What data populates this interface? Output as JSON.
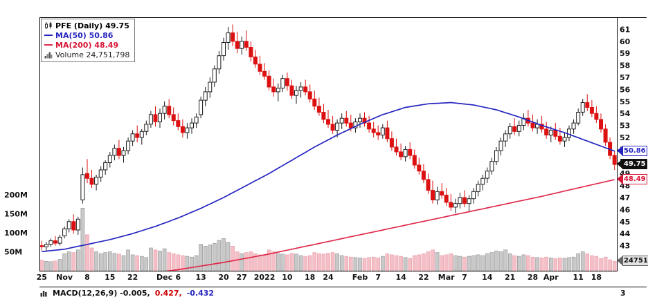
{
  "chart_data": {
    "type": "candlestick",
    "symbol": "PFE",
    "period": "Daily",
    "legend": {
      "title": "PFE (Daily) 49.75",
      "ma50": "MA(50) 50.86",
      "ma200": "MA(200) 48.49",
      "volume": "Volume 24,751,798"
    },
    "colors": {
      "up_fill": "#ffffff",
      "up_border": "#1a1a1a",
      "down": "#dd1111",
      "ma50": "#2424c0",
      "ma200": "#e0294b",
      "volume_up": "#c9c9c9",
      "volume_up_border": "#8f8f8f",
      "volume_down": "#f5bfc7",
      "volume_down_border": "#e59aa6"
    },
    "price_axis": {
      "ticks": [
        61,
        60,
        59,
        58,
        57,
        56,
        55,
        54,
        53,
        52,
        51,
        50,
        49,
        48,
        47,
        46,
        45,
        44,
        43
      ]
    },
    "volume_axis": {
      "labels": [
        "200M",
        "150M",
        "100M",
        "50M"
      ],
      "values": [
        200,
        150,
        100,
        50
      ]
    },
    "x_ticks": [
      [
        0,
        "25"
      ],
      [
        5,
        "Nov"
      ],
      [
        10,
        "8"
      ],
      [
        15,
        "15"
      ],
      [
        20,
        "22"
      ],
      [
        27,
        "Dec"
      ],
      [
        30,
        "6"
      ],
      [
        35,
        "13"
      ],
      [
        40,
        "20"
      ],
      [
        44,
        "27"
      ],
      [
        49,
        "2022"
      ],
      [
        54,
        "10"
      ],
      [
        59,
        "18"
      ],
      [
        63,
        "24"
      ],
      [
        70,
        "Feb"
      ],
      [
        74,
        "7"
      ],
      [
        79,
        "14"
      ],
      [
        84,
        "22"
      ],
      [
        89,
        "Mar"
      ],
      [
        93,
        "7"
      ],
      [
        98,
        "14"
      ],
      [
        103,
        "21"
      ],
      [
        108,
        "28"
      ],
      [
        112,
        "Apr"
      ],
      [
        118,
        "11"
      ],
      [
        122,
        "18"
      ]
    ],
    "candles": [
      [
        43.0,
        43.4,
        42.6,
        42.9,
        28
      ],
      [
        42.9,
        43.3,
        42.5,
        43.1,
        25
      ],
      [
        43.1,
        43.6,
        42.9,
        43.4,
        24
      ],
      [
        43.4,
        43.8,
        43.0,
        43.2,
        26
      ],
      [
        43.2,
        43.9,
        43.0,
        43.7,
        30
      ],
      [
        43.8,
        44.6,
        43.6,
        44.4,
        45
      ],
      [
        44.4,
        45.2,
        44.1,
        45.0,
        50
      ],
      [
        45.0,
        45.6,
        44.0,
        44.3,
        48
      ],
      [
        44.3,
        45.4,
        43.9,
        45.2,
        55
      ],
      [
        46.8,
        49.5,
        46.5,
        48.9,
        165
      ],
      [
        49.0,
        50.2,
        48.2,
        48.6,
        95
      ],
      [
        48.6,
        49.3,
        47.8,
        48.1,
        60
      ],
      [
        48.1,
        48.9,
        47.6,
        48.7,
        50
      ],
      [
        48.7,
        49.6,
        48.3,
        49.3,
        45
      ],
      [
        49.3,
        50.1,
        48.9,
        49.9,
        48
      ],
      [
        49.9,
        50.8,
        49.5,
        50.5,
        50
      ],
      [
        50.5,
        51.4,
        50.1,
        51.1,
        46
      ],
      [
        51.1,
        51.8,
        50.2,
        50.5,
        44
      ],
      [
        50.5,
        51.2,
        49.9,
        50.9,
        40
      ],
      [
        50.9,
        52.0,
        50.6,
        51.7,
        55
      ],
      [
        51.7,
        52.6,
        51.3,
        52.3,
        42
      ],
      [
        52.3,
        53.0,
        51.6,
        52.0,
        40
      ],
      [
        52.0,
        52.7,
        51.4,
        52.5,
        38
      ],
      [
        52.5,
        53.4,
        52.2,
        53.1,
        35
      ],
      [
        53.1,
        54.2,
        52.8,
        53.9,
        60
      ],
      [
        53.9,
        54.6,
        52.9,
        53.3,
        55
      ],
      [
        53.3,
        54.4,
        52.8,
        54.0,
        52
      ],
      [
        54.0,
        55.0,
        53.5,
        54.6,
        58
      ],
      [
        54.6,
        55.2,
        53.6,
        53.9,
        48
      ],
      [
        53.9,
        54.5,
        53.0,
        53.4,
        45
      ],
      [
        53.4,
        54.0,
        52.6,
        52.9,
        42
      ],
      [
        52.9,
        53.5,
        52.0,
        52.4,
        40
      ],
      [
        52.4,
        53.2,
        51.9,
        52.8,
        38
      ],
      [
        52.8,
        53.6,
        52.3,
        53.2,
        36
      ],
      [
        53.2,
        54.0,
        52.8,
        53.7,
        40
      ],
      [
        53.9,
        55.4,
        53.6,
        55.1,
        70
      ],
      [
        55.1,
        56.2,
        54.6,
        55.8,
        65
      ],
      [
        55.8,
        57.0,
        55.3,
        56.6,
        68
      ],
      [
        56.6,
        58.0,
        56.2,
        57.7,
        72
      ],
      [
        57.7,
        59.2,
        57.3,
        58.8,
        80
      ],
      [
        58.8,
        60.3,
        58.4,
        59.9,
        85
      ],
      [
        59.9,
        61.2,
        59.3,
        60.7,
        75
      ],
      [
        60.7,
        61.4,
        59.6,
        60.0,
        65
      ],
      [
        60.0,
        60.8,
        59.0,
        59.4,
        50
      ],
      [
        59.4,
        60.4,
        58.9,
        60.0,
        45
      ],
      [
        60.0,
        60.9,
        59.2,
        59.5,
        48
      ],
      [
        59.5,
        60.0,
        58.3,
        58.7,
        50
      ],
      [
        58.7,
        59.3,
        57.8,
        58.1,
        45
      ],
      [
        58.1,
        58.8,
        57.2,
        57.5,
        42
      ],
      [
        57.5,
        58.2,
        56.8,
        57.1,
        40
      ],
      [
        57.1,
        57.6,
        55.9,
        56.2,
        55
      ],
      [
        56.2,
        56.9,
        55.4,
        55.8,
        50
      ],
      [
        55.8,
        56.5,
        55.0,
        56.1,
        45
      ],
      [
        56.1,
        57.2,
        55.8,
        56.9,
        44
      ],
      [
        56.9,
        57.4,
        55.9,
        56.3,
        42
      ],
      [
        56.3,
        56.8,
        55.2,
        55.5,
        46
      ],
      [
        55.5,
        56.3,
        54.8,
        55.9,
        44
      ],
      [
        55.9,
        56.6,
        55.3,
        56.2,
        40
      ],
      [
        56.2,
        56.8,
        55.5,
        55.8,
        38
      ],
      [
        55.8,
        56.4,
        54.9,
        55.2,
        40
      ],
      [
        55.2,
        55.9,
        54.3,
        54.6,
        48
      ],
      [
        54.6,
        55.3,
        53.8,
        54.1,
        45
      ],
      [
        54.1,
        54.8,
        53.2,
        53.5,
        44
      ],
      [
        53.5,
        54.3,
        52.8,
        53.1,
        46
      ],
      [
        53.1,
        53.8,
        52.3,
        52.6,
        48
      ],
      [
        52.6,
        53.5,
        52.0,
        53.2,
        45
      ],
      [
        53.2,
        54.0,
        52.7,
        53.6,
        40
      ],
      [
        53.6,
        54.2,
        52.9,
        53.2,
        38
      ],
      [
        53.2,
        53.9,
        52.5,
        52.8,
        36
      ],
      [
        52.8,
        53.6,
        52.4,
        53.3,
        35
      ],
      [
        53.3,
        54.0,
        52.8,
        53.6,
        34
      ],
      [
        53.6,
        54.1,
        52.9,
        53.2,
        33
      ],
      [
        53.2,
        53.8,
        52.4,
        52.7,
        35
      ],
      [
        52.7,
        53.3,
        52.0,
        52.4,
        36
      ],
      [
        52.4,
        53.0,
        51.8,
        52.2,
        34
      ],
      [
        52.2,
        53.1,
        51.9,
        52.8,
        38
      ],
      [
        52.8,
        53.4,
        51.6,
        51.9,
        45
      ],
      [
        51.9,
        52.5,
        50.9,
        51.2,
        42
      ],
      [
        51.2,
        51.9,
        50.5,
        50.8,
        40
      ],
      [
        50.8,
        51.5,
        50.1,
        50.4,
        38
      ],
      [
        50.4,
        51.3,
        50.0,
        51.0,
        35
      ],
      [
        51.0,
        51.6,
        50.2,
        50.5,
        33
      ],
      [
        50.5,
        51.0,
        49.4,
        49.7,
        40
      ],
      [
        49.7,
        50.3,
        48.9,
        49.2,
        42
      ],
      [
        49.2,
        49.8,
        48.2,
        48.5,
        45
      ],
      [
        48.5,
        49.0,
        47.3,
        47.6,
        50
      ],
      [
        47.6,
        48.4,
        46.5,
        46.8,
        55
      ],
      [
        46.8,
        47.9,
        46.4,
        47.5,
        48
      ],
      [
        47.5,
        48.2,
        46.9,
        47.2,
        40
      ],
      [
        47.2,
        47.8,
        46.3,
        46.6,
        42
      ],
      [
        46.6,
        47.3,
        45.9,
        46.2,
        45
      ],
      [
        46.2,
        46.9,
        45.7,
        46.5,
        40
      ],
      [
        46.5,
        47.4,
        46.1,
        47.0,
        38
      ],
      [
        47.0,
        47.6,
        46.2,
        46.5,
        36
      ],
      [
        46.5,
        47.2,
        45.8,
        46.9,
        38
      ],
      [
        46.9,
        47.8,
        46.5,
        47.5,
        40
      ],
      [
        47.5,
        48.4,
        47.1,
        48.1,
        42
      ],
      [
        48.1,
        48.9,
        47.6,
        48.6,
        40
      ],
      [
        48.6,
        49.5,
        48.2,
        49.2,
        45
      ],
      [
        49.2,
        50.3,
        48.9,
        50.0,
        48
      ],
      [
        50.0,
        51.2,
        49.7,
        50.9,
        52
      ],
      [
        50.9,
        52.0,
        50.5,
        51.7,
        50
      ],
      [
        51.7,
        52.6,
        51.2,
        52.3,
        55
      ],
      [
        52.3,
        53.2,
        51.9,
        52.9,
        45
      ],
      [
        52.9,
        53.6,
        52.2,
        52.5,
        40
      ],
      [
        52.5,
        53.4,
        52.1,
        53.0,
        38
      ],
      [
        53.0,
        54.0,
        52.6,
        53.6,
        42
      ],
      [
        53.6,
        54.3,
        52.9,
        53.2,
        40
      ],
      [
        53.2,
        53.9,
        52.5,
        52.8,
        36
      ],
      [
        52.8,
        53.5,
        52.3,
        53.1,
        35
      ],
      [
        53.1,
        53.8,
        52.4,
        52.7,
        34
      ],
      [
        52.7,
        53.3,
        51.9,
        52.2,
        36
      ],
      [
        52.2,
        52.9,
        51.6,
        52.6,
        34
      ],
      [
        52.6,
        53.2,
        51.8,
        52.1,
        32
      ],
      [
        52.1,
        52.8,
        51.4,
        51.7,
        34
      ],
      [
        51.7,
        52.4,
        51.2,
        52.0,
        33
      ],
      [
        52.0,
        53.0,
        51.7,
        52.7,
        35
      ],
      [
        52.7,
        53.5,
        52.3,
        53.2,
        36
      ],
      [
        53.2,
        54.4,
        53.0,
        54.1,
        45
      ],
      [
        54.1,
        55.2,
        53.8,
        54.9,
        50
      ],
      [
        54.9,
        55.6,
        54.2,
        54.5,
        45
      ],
      [
        54.5,
        55.1,
        53.7,
        54.0,
        40
      ],
      [
        54.0,
        54.6,
        53.2,
        53.5,
        38
      ],
      [
        53.5,
        54.0,
        52.4,
        52.7,
        32
      ],
      [
        52.7,
        53.1,
        51.3,
        51.6,
        36
      ],
      [
        51.6,
        52.0,
        50.2,
        50.5,
        29
      ],
      [
        50.5,
        50.9,
        49.3,
        49.75,
        24.75
      ]
    ],
    "ma50_points": [
      [
        0,
        42.5
      ],
      [
        5,
        42.7
      ],
      [
        10,
        43.1
      ],
      [
        15,
        43.5
      ],
      [
        20,
        44.0
      ],
      [
        25,
        44.6
      ],
      [
        30,
        45.3
      ],
      [
        35,
        46.1
      ],
      [
        40,
        47.0
      ],
      [
        45,
        48.0
      ],
      [
        50,
        49.0
      ],
      [
        55,
        50.1
      ],
      [
        60,
        51.2
      ],
      [
        65,
        52.2
      ],
      [
        70,
        53.1
      ],
      [
        75,
        53.9
      ],
      [
        80,
        54.5
      ],
      [
        85,
        54.8
      ],
      [
        90,
        54.9
      ],
      [
        95,
        54.7
      ],
      [
        100,
        54.3
      ],
      [
        105,
        53.7
      ],
      [
        110,
        53.0
      ],
      [
        115,
        52.4
      ],
      [
        120,
        51.7
      ],
      [
        126,
        50.86
      ]
    ],
    "ma200_points": [
      [
        0,
        39.8
      ],
      [
        10,
        40.1
      ],
      [
        20,
        40.5
      ],
      [
        30,
        41.0
      ],
      [
        40,
        41.6
      ],
      [
        50,
        42.3
      ],
      [
        60,
        43.1
      ],
      [
        70,
        43.9
      ],
      [
        80,
        44.7
      ],
      [
        90,
        45.5
      ],
      [
        100,
        46.3
      ],
      [
        110,
        47.1
      ],
      [
        118,
        47.8
      ],
      [
        126,
        48.49
      ]
    ],
    "tags": {
      "ma50": {
        "label": "50.86",
        "value": 50.86
      },
      "last": {
        "label": "49.75",
        "value": 49.75
      },
      "ma200": {
        "label": "48.49",
        "value": 48.49
      },
      "volume": {
        "label": "24751",
        "value_m": 24.75
      }
    },
    "macd": {
      "label": "MACD(12,26,9) -0.005,",
      "signal": "0.427,",
      "hist": "-0.432",
      "axis_label": "3"
    }
  }
}
